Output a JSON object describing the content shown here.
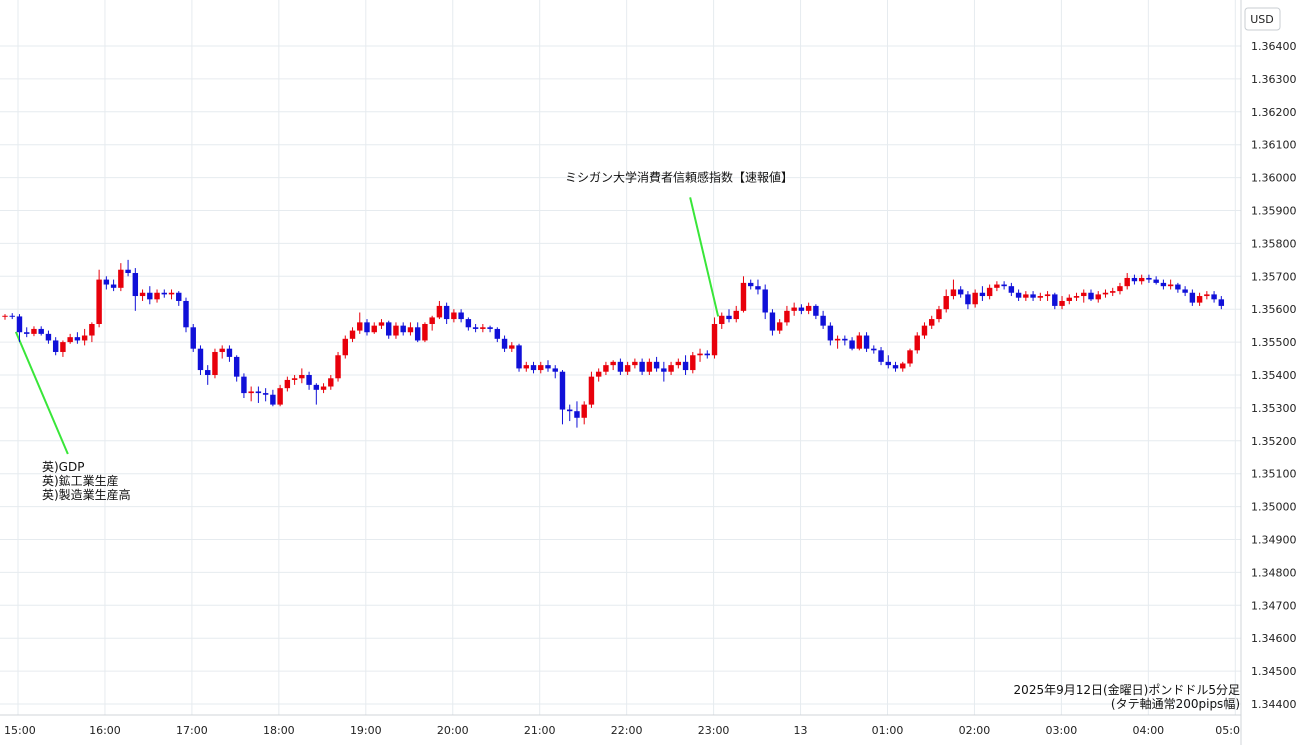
{
  "chart_data": {
    "type": "candlestick",
    "currency_label": "USD",
    "y_ticks": [
      "1.36400",
      "1.36300",
      "1.36200",
      "1.36100",
      "1.36000",
      "1.35900",
      "1.35800",
      "1.35700",
      "1.35600",
      "1.35500",
      "1.35400",
      "1.35300",
      "1.35200",
      "1.35100",
      "1.35000",
      "1.34900",
      "1.34800",
      "1.34700",
      "1.34600",
      "1.34500",
      "1.34400"
    ],
    "ylim": [
      1.3437,
      1.3647
    ],
    "x_ticks": [
      "15:00",
      "16:00",
      "17:00",
      "18:00",
      "19:00",
      "20:00",
      "21:00",
      "22:00",
      "23:00",
      "13",
      "01:00",
      "02:00",
      "03:00",
      "04:00",
      "05:0"
    ],
    "candle_width_bars": 0.75,
    "colors": {
      "up": "#e8000b",
      "down": "#1010d8",
      "grid": "#e6ebef",
      "annotation_line": "#39e639",
      "axis_text": "#222222"
    },
    "annotations": [
      {
        "lines": [
          "英)GDP",
          "英)鉱工業生産",
          "英)製造業生産高"
        ],
        "bar": 1.5,
        "price": 1.35531,
        "label_price": 1.3516
      },
      {
        "lines": [
          "ミシガン大学消費者信頼感指数【速報値】"
        ],
        "bar": 98.5,
        "price": 1.35578,
        "label_price": 1.3594
      }
    ],
    "caption": [
      "2025年9月12日(金曜日)ポンドドル5分足",
      "(タテ軸通常200pips幅)"
    ],
    "candles": [
      [
        1.35578,
        1.35585,
        1.35568,
        1.3558
      ],
      [
        1.3558,
        1.35588,
        1.3557,
        1.35578
      ],
      [
        1.35578,
        1.35585,
        1.355,
        1.3553
      ],
      [
        1.3553,
        1.35545,
        1.35515,
        1.35525
      ],
      [
        1.35525,
        1.35548,
        1.35518,
        1.3554
      ],
      [
        1.3554,
        1.35548,
        1.3552,
        1.35525
      ],
      [
        1.35525,
        1.35535,
        1.35495,
        1.35505
      ],
      [
        1.35505,
        1.35515,
        1.3546,
        1.3547
      ],
      [
        1.3547,
        1.35505,
        1.35455,
        1.355
      ],
      [
        1.355,
        1.35525,
        1.35495,
        1.35515
      ],
      [
        1.35515,
        1.3553,
        1.35495,
        1.35505
      ],
      [
        1.35505,
        1.3554,
        1.3549,
        1.3552
      ],
      [
        1.3552,
        1.3556,
        1.355,
        1.35555
      ],
      [
        1.35555,
        1.3572,
        1.35545,
        1.3569
      ],
      [
        1.3569,
        1.357,
        1.3566,
        1.35675
      ],
      [
        1.35675,
        1.3569,
        1.35655,
        1.35665
      ],
      [
        1.35665,
        1.3574,
        1.35655,
        1.3572
      ],
      [
        1.3572,
        1.3575,
        1.357,
        1.3571
      ],
      [
        1.3571,
        1.35725,
        1.35595,
        1.3564
      ],
      [
        1.3564,
        1.3566,
        1.35625,
        1.3565
      ],
      [
        1.3565,
        1.3567,
        1.35615,
        1.3563
      ],
      [
        1.3563,
        1.3566,
        1.3562,
        1.3565
      ],
      [
        1.3565,
        1.3566,
        1.35635,
        1.35645
      ],
      [
        1.35645,
        1.3566,
        1.3563,
        1.3565
      ],
      [
        1.3565,
        1.35655,
        1.3561,
        1.35625
      ],
      [
        1.35625,
        1.35635,
        1.3553,
        1.35545
      ],
      [
        1.35545,
        1.35555,
        1.3547,
        1.3548
      ],
      [
        1.3548,
        1.3549,
        1.354,
        1.35415
      ],
      [
        1.35415,
        1.3543,
        1.3537,
        1.354
      ],
      [
        1.354,
        1.3548,
        1.3539,
        1.3547
      ],
      [
        1.3547,
        1.3549,
        1.3545,
        1.3548
      ],
      [
        1.3548,
        1.3549,
        1.3544,
        1.35455
      ],
      [
        1.35455,
        1.3546,
        1.3538,
        1.35395
      ],
      [
        1.35395,
        1.35405,
        1.3533,
        1.35345
      ],
      [
        1.35345,
        1.35365,
        1.3532,
        1.3535
      ],
      [
        1.3535,
        1.35365,
        1.35315,
        1.35345
      ],
      [
        1.35345,
        1.3536,
        1.3532,
        1.3534
      ],
      [
        1.3534,
        1.35355,
        1.35305,
        1.3531
      ],
      [
        1.3531,
        1.3537,
        1.35305,
        1.3536
      ],
      [
        1.3536,
        1.35395,
        1.3535,
        1.35385
      ],
      [
        1.35385,
        1.354,
        1.3537,
        1.3539
      ],
      [
        1.3539,
        1.3542,
        1.35375,
        1.354
      ],
      [
        1.354,
        1.3541,
        1.35355,
        1.3537
      ],
      [
        1.3537,
        1.35375,
        1.3531,
        1.35355
      ],
      [
        1.35355,
        1.35375,
        1.35345,
        1.35365
      ],
      [
        1.35365,
        1.354,
        1.35355,
        1.3539
      ],
      [
        1.3539,
        1.3547,
        1.3538,
        1.3546
      ],
      [
        1.3546,
        1.3552,
        1.3545,
        1.3551
      ],
      [
        1.3551,
        1.35545,
        1.355,
        1.35535
      ],
      [
        1.35535,
        1.3559,
        1.35525,
        1.3556
      ],
      [
        1.3556,
        1.3557,
        1.3552,
        1.3553
      ],
      [
        1.3553,
        1.3556,
        1.35525,
        1.3555
      ],
      [
        1.3555,
        1.3557,
        1.3554,
        1.3556
      ],
      [
        1.3556,
        1.35565,
        1.3551,
        1.3552
      ],
      [
        1.3552,
        1.3556,
        1.3551,
        1.3555
      ],
      [
        1.3555,
        1.3556,
        1.3552,
        1.3553
      ],
      [
        1.3553,
        1.3556,
        1.3552,
        1.35545
      ],
      [
        1.35545,
        1.3556,
        1.355,
        1.35505
      ],
      [
        1.35505,
        1.3556,
        1.355,
        1.35555
      ],
      [
        1.35555,
        1.3558,
        1.35535,
        1.35575
      ],
      [
        1.35575,
        1.35625,
        1.3557,
        1.3561
      ],
      [
        1.3561,
        1.3562,
        1.35555,
        1.3557
      ],
      [
        1.3557,
        1.356,
        1.3556,
        1.3559
      ],
      [
        1.3559,
        1.356,
        1.3556,
        1.3557
      ],
      [
        1.3557,
        1.35575,
        1.35535,
        1.35545
      ],
      [
        1.35545,
        1.35555,
        1.3553,
        1.3554
      ],
      [
        1.3554,
        1.35555,
        1.3553,
        1.35545
      ],
      [
        1.35545,
        1.3555,
        1.3553,
        1.3554
      ],
      [
        1.3554,
        1.35545,
        1.355,
        1.3551
      ],
      [
        1.3551,
        1.3552,
        1.3547,
        1.3548
      ],
      [
        1.3548,
        1.355,
        1.3547,
        1.3549
      ],
      [
        1.3549,
        1.35495,
        1.3541,
        1.3542
      ],
      [
        1.3542,
        1.3544,
        1.3541,
        1.3543
      ],
      [
        1.3543,
        1.3544,
        1.35405,
        1.35415
      ],
      [
        1.35415,
        1.3544,
        1.35405,
        1.3543
      ],
      [
        1.3543,
        1.35445,
        1.3541,
        1.3542
      ],
      [
        1.3542,
        1.3543,
        1.3539,
        1.3541
      ],
      [
        1.3541,
        1.35415,
        1.3525,
        1.35295
      ],
      [
        1.35295,
        1.3531,
        1.3526,
        1.3529
      ],
      [
        1.3529,
        1.3532,
        1.3524,
        1.3527
      ],
      [
        1.3527,
        1.3532,
        1.3525,
        1.3531
      ],
      [
        1.3531,
        1.3541,
        1.353,
        1.35395
      ],
      [
        1.35395,
        1.3542,
        1.3538,
        1.3541
      ],
      [
        1.3541,
        1.3544,
        1.354,
        1.3543
      ],
      [
        1.3543,
        1.35445,
        1.35415,
        1.3544
      ],
      [
        1.3544,
        1.3545,
        1.354,
        1.3541
      ],
      [
        1.3541,
        1.3544,
        1.354,
        1.3543
      ],
      [
        1.3543,
        1.3545,
        1.3542,
        1.3544
      ],
      [
        1.3544,
        1.3545,
        1.354,
        1.3541
      ],
      [
        1.3541,
        1.3545,
        1.354,
        1.3544
      ],
      [
        1.3544,
        1.35455,
        1.3541,
        1.3542
      ],
      [
        1.3542,
        1.3544,
        1.3538,
        1.3541
      ],
      [
        1.3541,
        1.3544,
        1.354,
        1.3543
      ],
      [
        1.3543,
        1.3545,
        1.3542,
        1.3544
      ],
      [
        1.3544,
        1.3546,
        1.354,
        1.35415
      ],
      [
        1.35415,
        1.3547,
        1.35405,
        1.3546
      ],
      [
        1.3546,
        1.3548,
        1.3544,
        1.35465
      ],
      [
        1.35465,
        1.35475,
        1.3545,
        1.3546
      ],
      [
        1.3546,
        1.35575,
        1.3545,
        1.35555
      ],
      [
        1.35555,
        1.3559,
        1.3554,
        1.3558
      ],
      [
        1.3558,
        1.356,
        1.3556,
        1.3557
      ],
      [
        1.3557,
        1.3561,
        1.3556,
        1.35595
      ],
      [
        1.35595,
        1.357,
        1.3559,
        1.3568
      ],
      [
        1.3568,
        1.3569,
        1.3566,
        1.3567
      ],
      [
        1.3567,
        1.3569,
        1.35645,
        1.3566
      ],
      [
        1.3566,
        1.35675,
        1.3557,
        1.3559
      ],
      [
        1.3559,
        1.356,
        1.3552,
        1.35535
      ],
      [
        1.35535,
        1.3557,
        1.35525,
        1.3556
      ],
      [
        1.3556,
        1.3561,
        1.3555,
        1.35595
      ],
      [
        1.35595,
        1.3562,
        1.3558,
        1.35605
      ],
      [
        1.35605,
        1.35615,
        1.35585,
        1.35595
      ],
      [
        1.35595,
        1.3562,
        1.35585,
        1.3561
      ],
      [
        1.3561,
        1.35615,
        1.3557,
        1.3558
      ],
      [
        1.3558,
        1.35595,
        1.3554,
        1.3555
      ],
      [
        1.3555,
        1.3556,
        1.3549,
        1.35505
      ],
      [
        1.35505,
        1.3552,
        1.3548,
        1.3551
      ],
      [
        1.3551,
        1.3552,
        1.3549,
        1.35505
      ],
      [
        1.35505,
        1.35515,
        1.35475,
        1.3548
      ],
      [
        1.3548,
        1.3553,
        1.35475,
        1.3552
      ],
      [
        1.3552,
        1.3553,
        1.3547,
        1.3548
      ],
      [
        1.3548,
        1.3549,
        1.35465,
        1.35475
      ],
      [
        1.35475,
        1.35485,
        1.3543,
        1.3544
      ],
      [
        1.3544,
        1.3546,
        1.3542,
        1.3543
      ],
      [
        1.3543,
        1.3544,
        1.3541,
        1.3542
      ],
      [
        1.3542,
        1.3544,
        1.3541,
        1.35435
      ],
      [
        1.35435,
        1.3548,
        1.35425,
        1.35475
      ],
      [
        1.35475,
        1.3553,
        1.35465,
        1.3552
      ],
      [
        1.3552,
        1.3556,
        1.3551,
        1.3555
      ],
      [
        1.3555,
        1.3558,
        1.3554,
        1.3557
      ],
      [
        1.3557,
        1.3561,
        1.3556,
        1.356
      ],
      [
        1.356,
        1.3566,
        1.3559,
        1.3564
      ],
      [
        1.3564,
        1.3569,
        1.3563,
        1.3566
      ],
      [
        1.3566,
        1.3567,
        1.35635,
        1.35645
      ],
      [
        1.35645,
        1.35655,
        1.356,
        1.35615
      ],
      [
        1.35615,
        1.3566,
        1.35605,
        1.3565
      ],
      [
        1.3565,
        1.3567,
        1.35625,
        1.3564
      ],
      [
        1.3564,
        1.35675,
        1.3563,
        1.35665
      ],
      [
        1.35665,
        1.35685,
        1.35655,
        1.35675
      ],
      [
        1.35675,
        1.35685,
        1.3566,
        1.3567
      ],
      [
        1.3567,
        1.3568,
        1.3564,
        1.3565
      ],
      [
        1.3565,
        1.3566,
        1.35625,
        1.35635
      ],
      [
        1.35635,
        1.35655,
        1.35625,
        1.35645
      ],
      [
        1.35645,
        1.35655,
        1.35625,
        1.35635
      ],
      [
        1.35635,
        1.3565,
        1.35625,
        1.3564
      ],
      [
        1.3564,
        1.35655,
        1.35625,
        1.35645
      ],
      [
        1.35645,
        1.3565,
        1.356,
        1.3561
      ],
      [
        1.3561,
        1.3564,
        1.356,
        1.35625
      ],
      [
        1.35625,
        1.35645,
        1.35615,
        1.35635
      ],
      [
        1.35635,
        1.3565,
        1.35625,
        1.3564
      ],
      [
        1.3564,
        1.3566,
        1.3562,
        1.3565
      ],
      [
        1.3565,
        1.3566,
        1.35625,
        1.3563
      ],
      [
        1.3563,
        1.35655,
        1.3562,
        1.35645
      ],
      [
        1.35645,
        1.3566,
        1.35635,
        1.3565
      ],
      [
        1.3565,
        1.35665,
        1.3564,
        1.35655
      ],
      [
        1.35655,
        1.3568,
        1.35645,
        1.3567
      ],
      [
        1.3567,
        1.3571,
        1.3566,
        1.35695
      ],
      [
        1.35695,
        1.35705,
        1.35675,
        1.35685
      ],
      [
        1.35685,
        1.35705,
        1.35675,
        1.35695
      ],
      [
        1.35695,
        1.35705,
        1.3568,
        1.3569
      ],
      [
        1.3569,
        1.357,
        1.35675,
        1.3568
      ],
      [
        1.3568,
        1.3569,
        1.3566,
        1.3567
      ],
      [
        1.3567,
        1.3569,
        1.3566,
        1.35675
      ],
      [
        1.35675,
        1.3568,
        1.3565,
        1.3566
      ],
      [
        1.3566,
        1.3567,
        1.3564,
        1.3565
      ],
      [
        1.3565,
        1.3566,
        1.3561,
        1.3562
      ],
      [
        1.3562,
        1.3565,
        1.3561,
        1.3564
      ],
      [
        1.3564,
        1.35655,
        1.3563,
        1.35645
      ],
      [
        1.35645,
        1.35655,
        1.3562,
        1.3563
      ],
      [
        1.3563,
        1.3564,
        1.356,
        1.3561
      ]
    ]
  }
}
